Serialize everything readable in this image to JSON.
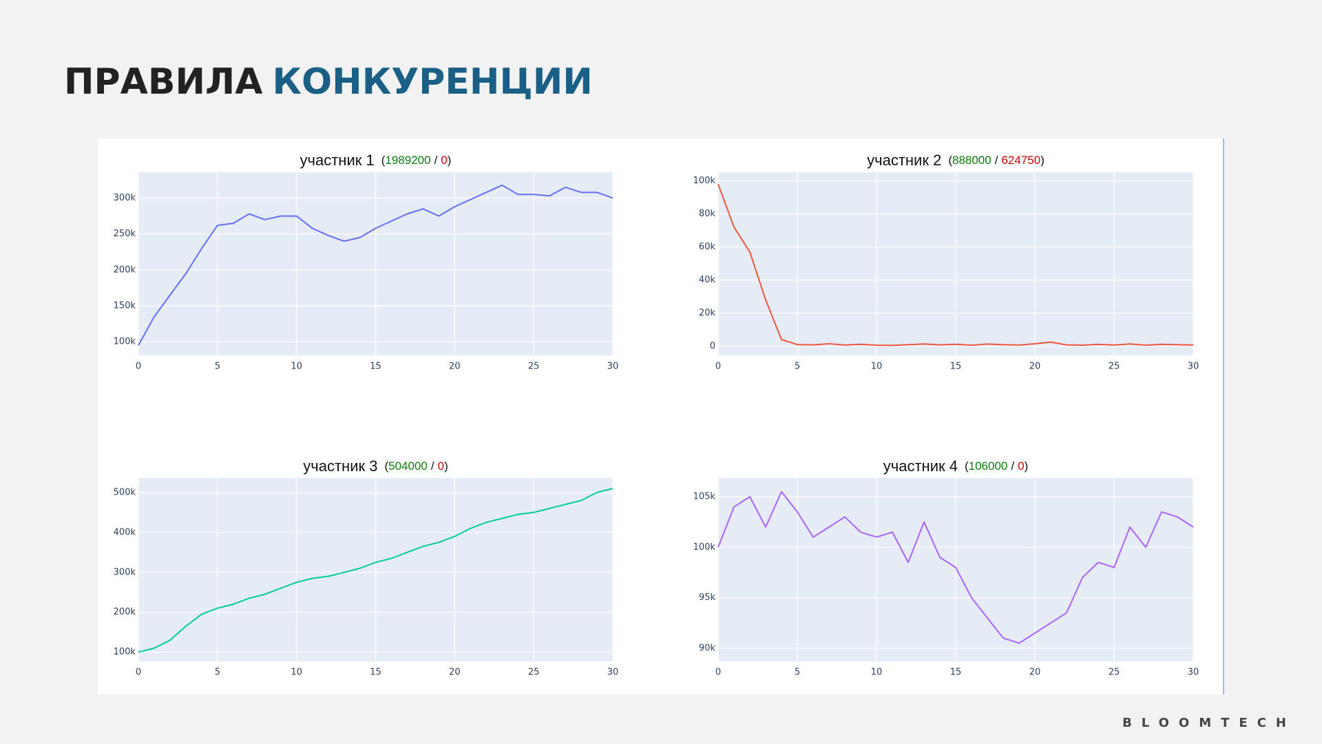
{
  "header": {
    "title_dark": "ПРАВИЛА",
    "title_accent": "КОНКУРЕНЦИИ"
  },
  "logo": "BLOOMTECH",
  "chart_data": [
    {
      "type": "line",
      "title": "участник 1",
      "brackets": [
        "(",
        ")"
      ],
      "separator": "/",
      "gain": 1989200,
      "loss": 0,
      "x": [
        0,
        1,
        2,
        3,
        4,
        5,
        6,
        7,
        8,
        9,
        10,
        11,
        12,
        13,
        14,
        15,
        16,
        17,
        18,
        19,
        20,
        21,
        22,
        23,
        24,
        25,
        26,
        27,
        28,
        29,
        30
      ],
      "series": [
        {
          "color": "#636efa",
          "values": [
            95000,
            135000,
            165000,
            195000,
            230000,
            262000,
            265000,
            278000,
            270000,
            275000,
            275000,
            258000,
            248000,
            240000,
            245000,
            258000,
            268000,
            278000,
            285000,
            275000,
            288000,
            298000,
            308000,
            318000,
            305000,
            305000,
            303000,
            315000,
            308000,
            308000,
            300000
          ]
        }
      ],
      "xlim": [
        0,
        30
      ],
      "xticks": [
        0,
        5,
        10,
        15,
        20,
        25,
        30
      ],
      "ylim": [
        81000,
        336000
      ],
      "yticks": [
        {
          "value": 100000,
          "label": "100k"
        },
        {
          "value": 150000,
          "label": "150k"
        },
        {
          "value": 200000,
          "label": "200k"
        },
        {
          "value": 250000,
          "label": "250k"
        },
        {
          "value": 300000,
          "label": "300k"
        }
      ],
      "grid": true
    },
    {
      "type": "line",
      "title": "участник 2",
      "brackets": [
        "(",
        ")"
      ],
      "separator": "/",
      "gain": 888000,
      "loss": 624750,
      "x": [
        0,
        1,
        2,
        3,
        4,
        5,
        6,
        7,
        8,
        9,
        10,
        11,
        12,
        13,
        14,
        15,
        16,
        17,
        18,
        19,
        20,
        21,
        22,
        23,
        24,
        25,
        26,
        27,
        28,
        29,
        30
      ],
      "series": [
        {
          "color": "#ef553b",
          "values": [
            98000,
            72000,
            57000,
            28000,
            4000,
            1000,
            800,
            1500,
            700,
            1200,
            600,
            500,
            900,
            1400,
            800,
            1200,
            600,
            1300,
            900,
            700,
            1500,
            2500,
            800,
            600,
            1100,
            700,
            1400,
            600,
            1200,
            900,
            700
          ]
        }
      ],
      "xlim": [
        0,
        30
      ],
      "xticks": [
        0,
        5,
        10,
        15,
        20,
        25,
        30
      ],
      "ylim": [
        -5600,
        105200
      ],
      "yticks": [
        0,
        {
          "value": 20000,
          "label": "20k"
        },
        {
          "value": 40000,
          "label": "40k"
        },
        {
          "value": 60000,
          "label": "60k"
        },
        {
          "value": 80000,
          "label": "80k"
        },
        {
          "value": 100000,
          "label": "100k"
        }
      ],
      "grid": true
    },
    {
      "type": "line",
      "title": "участник 3",
      "brackets": [
        "(",
        ")"
      ],
      "separator": "/",
      "gain": 504000,
      "loss": 0,
      "x": [
        0,
        1,
        2,
        3,
        4,
        5,
        6,
        7,
        8,
        9,
        10,
        11,
        12,
        13,
        14,
        15,
        16,
        17,
        18,
        19,
        20,
        21,
        22,
        23,
        24,
        25,
        26,
        27,
        28,
        29,
        30
      ],
      "series": [
        {
          "color": "#00cc96",
          "values": [
            100000,
            110000,
            130000,
            165000,
            195000,
            210000,
            220000,
            235000,
            245000,
            260000,
            275000,
            285000,
            290000,
            300000,
            310000,
            325000,
            335000,
            350000,
            365000,
            375000,
            390000,
            410000,
            425000,
            435000,
            445000,
            450000,
            460000,
            470000,
            480000,
            500000,
            510000
          ]
        }
      ],
      "xlim": [
        0,
        30
      ],
      "xticks": [
        0,
        5,
        10,
        15,
        20,
        25,
        30
      ],
      "ylim": [
        77000,
        536000
      ],
      "yticks": [
        {
          "value": 100000,
          "label": "100k"
        },
        {
          "value": 200000,
          "label": "200k"
        },
        {
          "value": 300000,
          "label": "300k"
        },
        {
          "value": 400000,
          "label": "400k"
        },
        {
          "value": 500000,
          "label": "500k"
        }
      ],
      "grid": true
    },
    {
      "type": "line",
      "title": "участник 4",
      "brackets": [
        "(",
        ")"
      ],
      "separator": "/",
      "gain": 106000,
      "loss": 0,
      "x": [
        0,
        1,
        2,
        3,
        4,
        5,
        6,
        7,
        8,
        9,
        10,
        11,
        12,
        13,
        14,
        15,
        16,
        17,
        18,
        19,
        20,
        21,
        22,
        23,
        24,
        25,
        26,
        27,
        28,
        29,
        30
      ],
      "series": [
        {
          "color": "#ab63fa",
          "values": [
            100000,
            104000,
            105000,
            102000,
            105500,
            103500,
            101000,
            102000,
            103000,
            101500,
            101000,
            101500,
            98500,
            102500,
            99000,
            98000,
            95000,
            93000,
            91000,
            90500,
            91500,
            92500,
            93500,
            97000,
            98500,
            98000,
            102000,
            100000,
            103500,
            103000,
            102000
          ]
        }
      ],
      "xlim": [
        0,
        30
      ],
      "xticks": [
        0,
        5,
        10,
        15,
        20,
        25,
        30
      ],
      "ylim": [
        88700,
        106850
      ],
      "yticks": [
        {
          "value": 90000,
          "label": "90k"
        },
        {
          "value": 95000,
          "label": "95k"
        },
        {
          "value": 100000,
          "label": "100k"
        },
        {
          "value": 105000,
          "label": "105k"
        }
      ],
      "grid": true
    }
  ]
}
